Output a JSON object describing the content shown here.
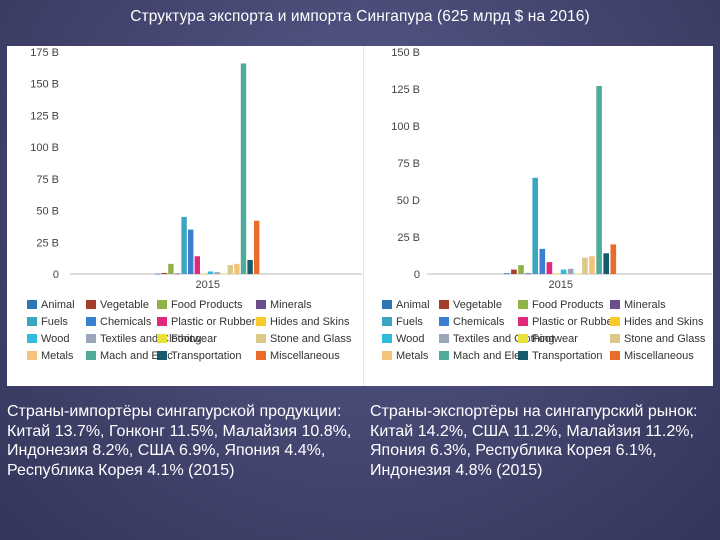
{
  "title": "Структура экспорта и импорта Сингапура (625 млрд $ на 2016)",
  "legend_items": [
    {
      "label": "Animal",
      "color": "#2e75b6",
      "icon": "legend-swatch"
    },
    {
      "label": "Vegetable",
      "color": "#a33d2d",
      "icon": "legend-swatch"
    },
    {
      "label": "Food Products",
      "color": "#8fb346",
      "icon": "legend-swatch"
    },
    {
      "label": "Minerals",
      "color": "#6b4e8c",
      "icon": "legend-swatch"
    },
    {
      "label": "Fuels",
      "color": "#3aa6c2",
      "icon": "legend-swatch"
    },
    {
      "label": "Chemicals",
      "color": "#3b7fd0",
      "icon": "legend-swatch"
    },
    {
      "label": "Plastic or Rubber",
      "color": "#e0297a",
      "icon": "legend-swatch"
    },
    {
      "label": "Hides and Skins",
      "color": "#f7c92b",
      "icon": "legend-swatch"
    },
    {
      "label": "Wood",
      "color": "#31b9de",
      "icon": "legend-swatch"
    },
    {
      "label": "Textiles and Clothing",
      "color": "#9aa7b8",
      "icon": "legend-swatch"
    },
    {
      "label": "Footwear",
      "color": "#e8e23a",
      "icon": "legend-swatch"
    },
    {
      "label": "Stone and Glass",
      "color": "#dcc98a",
      "icon": "legend-swatch"
    },
    {
      "label": "Metals",
      "color": "#f5c27a",
      "icon": "legend-swatch"
    },
    {
      "label": "Mach and Elec",
      "color": "#4fab9a",
      "icon": "legend-swatch"
    },
    {
      "label": "Transportation",
      "color": "#17596d",
      "icon": "legend-swatch"
    },
    {
      "label": "Miscellaneous",
      "color": "#ea6c28",
      "icon": "legend-swatch"
    }
  ],
  "chart_data": [
    {
      "type": "bar",
      "categories": [
        "2015"
      ],
      "ylim": [
        0,
        175
      ],
      "yticks": [
        0,
        25,
        50,
        75,
        100,
        125,
        150,
        175
      ],
      "ytick_labels": [
        "0",
        "25 B",
        "50 B",
        "75 B",
        "100 B",
        "125 B",
        "150 B",
        "175 B"
      ],
      "grid": false,
      "legend": "bottom",
      "series": [
        {
          "name": "Animal",
          "values": [
            0.3
          ]
        },
        {
          "name": "Vegetable",
          "values": [
            0.8
          ]
        },
        {
          "name": "Food Products",
          "values": [
            8
          ]
        },
        {
          "name": "Minerals",
          "values": [
            0.4
          ]
        },
        {
          "name": "Fuels",
          "values": [
            45
          ]
        },
        {
          "name": "Chemicals",
          "values": [
            35
          ]
        },
        {
          "name": "Plastic or Rubber",
          "values": [
            14
          ]
        },
        {
          "name": "Hides and Skins",
          "values": [
            0.3
          ]
        },
        {
          "name": "Wood",
          "values": [
            2
          ]
        },
        {
          "name": "Textiles and Clothing",
          "values": [
            1.5
          ]
        },
        {
          "name": "Footwear",
          "values": [
            0.3
          ]
        },
        {
          "name": "Stone and Glass",
          "values": [
            7
          ]
        },
        {
          "name": "Metals",
          "values": [
            8
          ]
        },
        {
          "name": "Mach and Elec",
          "values": [
            166
          ]
        },
        {
          "name": "Transportation",
          "values": [
            11
          ]
        },
        {
          "name": "Miscellaneous",
          "values": [
            42
          ]
        }
      ]
    },
    {
      "type": "bar",
      "categories": [
        "2015"
      ],
      "ylim": [
        0,
        150
      ],
      "yticks": [
        0,
        25,
        50,
        75,
        100,
        125,
        150
      ],
      "ytick_labels": [
        "0",
        "25 B",
        "50 D",
        "75 B",
        "100 B",
        "125 B",
        "150 B"
      ],
      "grid": false,
      "legend": "bottom",
      "series": [
        {
          "name": "Animal",
          "values": [
            0.5
          ]
        },
        {
          "name": "Vegetable",
          "values": [
            3
          ]
        },
        {
          "name": "Food Products",
          "values": [
            6
          ]
        },
        {
          "name": "Minerals",
          "values": [
            0.5
          ]
        },
        {
          "name": "Fuels",
          "values": [
            65
          ]
        },
        {
          "name": "Chemicals",
          "values": [
            17
          ]
        },
        {
          "name": "Plastic or Rubber",
          "values": [
            8
          ]
        },
        {
          "name": "Hides and Skins",
          "values": [
            0.2
          ]
        },
        {
          "name": "Wood",
          "values": [
            3
          ]
        },
        {
          "name": "Textiles and Clothing",
          "values": [
            3.5
          ]
        },
        {
          "name": "Footwear",
          "values": [
            0.3
          ]
        },
        {
          "name": "Stone and Glass",
          "values": [
            11
          ]
        },
        {
          "name": "Metals",
          "values": [
            12
          ]
        },
        {
          "name": "Mach and Elec",
          "values": [
            127
          ]
        },
        {
          "name": "Transportation",
          "values": [
            14
          ]
        },
        {
          "name": "Miscellaneous",
          "values": [
            20
          ]
        }
      ]
    }
  ],
  "captions": [
    {
      "heading": "Страны-импортёры сингапурской продукции:",
      "body": "Китай 13.7%, Гонконг 11.5%, Малайзия 10.8%, Индонезия 8.2%, США 6.9%, Япония 4.4%, Республика Корея 4.1% (2015)"
    },
    {
      "heading": "Страны-экспортёры на сингапурский рынок:",
      "body": "Китай 14.2%, США 11.2%, Малайзия 11.2%, Япония 6.3%, Республика Корея 6.1%, Индонезия 4.8% (2015)"
    }
  ]
}
